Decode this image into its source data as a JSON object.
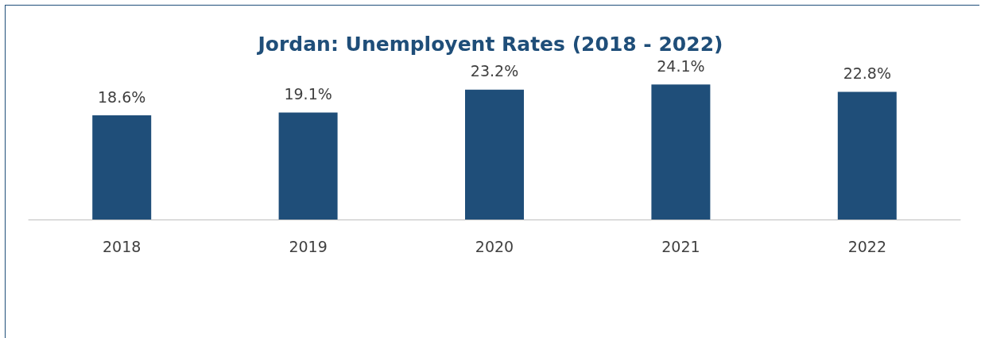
{
  "chart_data": {
    "type": "bar",
    "title": "Jordan: Unemployent Rates (2018 - 2022)",
    "categories": [
      "2018",
      "2019",
      "2020",
      "2021",
      "2022"
    ],
    "values": [
      18.6,
      19.1,
      23.2,
      24.1,
      22.8
    ],
    "value_labels": [
      "18.6%",
      "19.1%",
      "23.2%",
      "24.1%",
      "22.8%"
    ],
    "color": "#1f4e79"
  }
}
